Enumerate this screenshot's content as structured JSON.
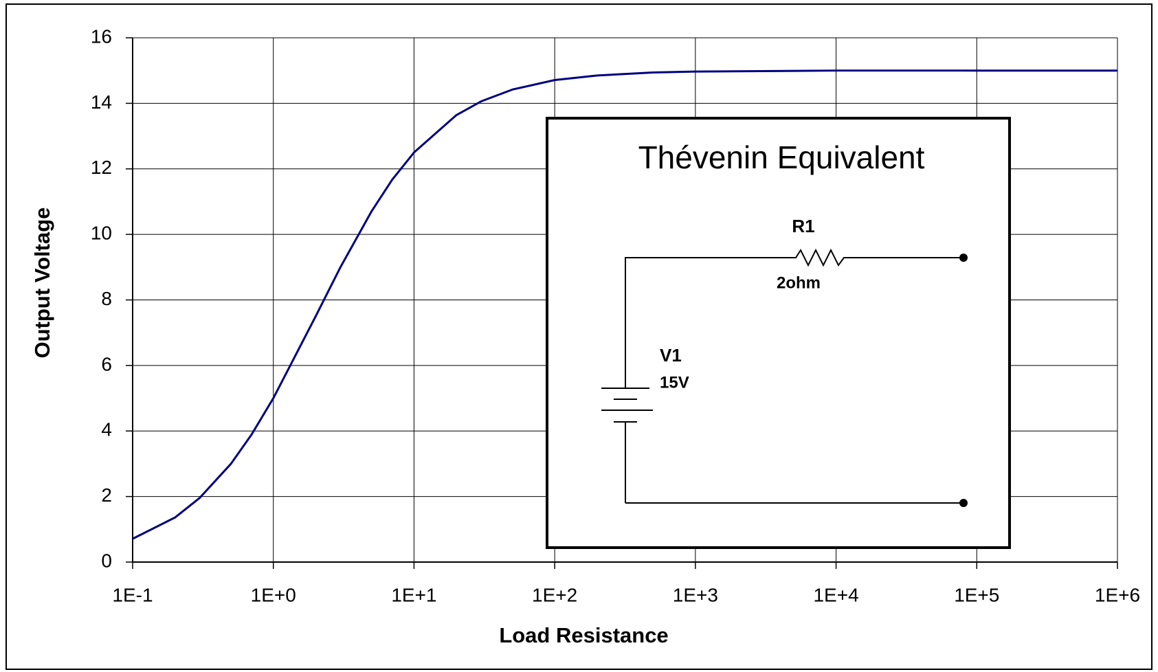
{
  "chart_data": {
    "type": "line",
    "xlabel": "Load Resistance",
    "ylabel": "Output Voltage",
    "xscale": "log",
    "grid": true,
    "x": [
      0.1,
      0.2,
      0.3,
      0.5,
      0.7,
      1,
      2,
      3,
      5,
      7,
      10,
      20,
      30,
      50,
      100,
      200,
      500,
      1000,
      10000,
      100000,
      1000000
    ],
    "series": [
      {
        "name": "Output Voltage",
        "color": "#000080",
        "values": [
          0.71,
          1.36,
          1.96,
          3.0,
          3.89,
          5.0,
          7.5,
          9.0,
          10.71,
          11.67,
          12.5,
          13.64,
          14.06,
          14.42,
          14.71,
          14.85,
          14.94,
          14.97,
          15.0,
          15.0,
          15.0
        ]
      }
    ],
    "xlim": [
      0.1,
      1000000
    ],
    "ylim": [
      0,
      16
    ],
    "xticks": [
      {
        "value": 0.1,
        "label": "1E-1"
      },
      {
        "value": 1,
        "label": "1E+0"
      },
      {
        "value": 10,
        "label": "1E+1"
      },
      {
        "value": 100,
        "label": "1E+2"
      },
      {
        "value": 1000,
        "label": "1E+3"
      },
      {
        "value": 10000,
        "label": "1E+4"
      },
      {
        "value": 100000,
        "label": "1E+5"
      },
      {
        "value": 1000000,
        "label": "1E+6"
      }
    ],
    "yticks": [
      0,
      2,
      4,
      6,
      8,
      10,
      12,
      14,
      16
    ],
    "inset": {
      "title": "Thévenin Equivalent",
      "resistor": "R1",
      "resistance": "2ohm",
      "source": "V1",
      "voltage": "15V"
    }
  }
}
